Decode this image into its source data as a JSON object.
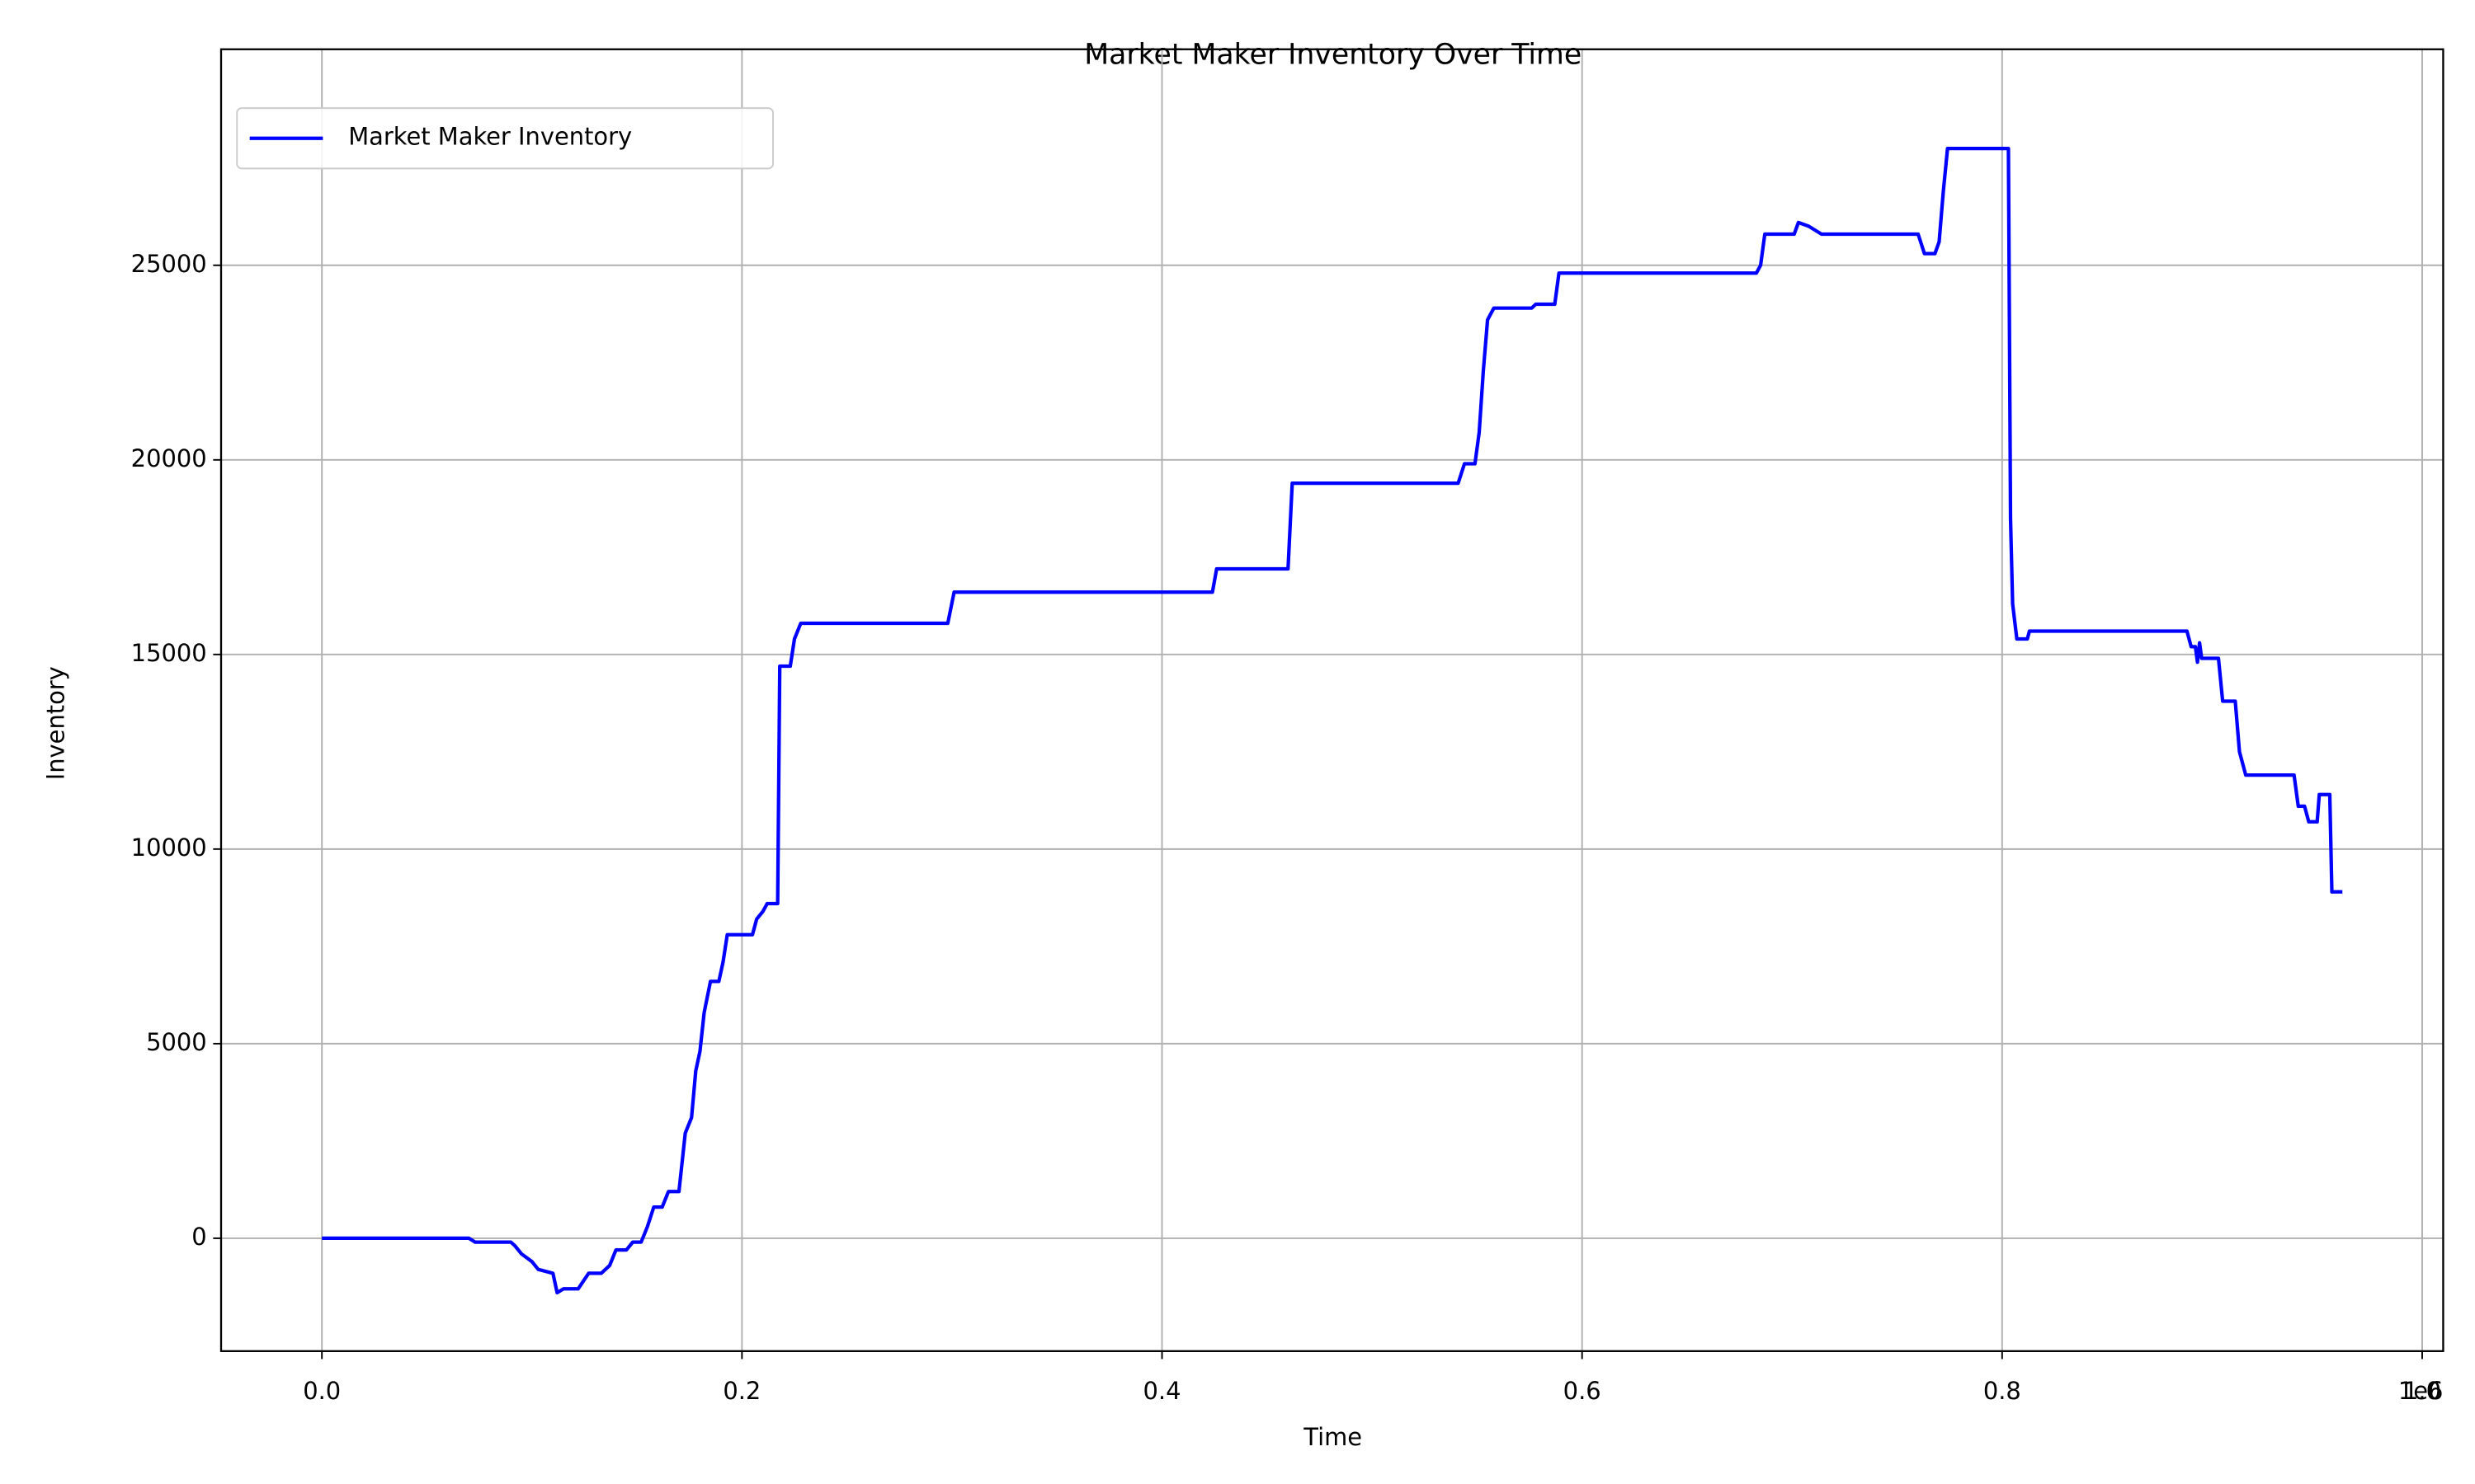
{
  "chart_data": {
    "type": "line",
    "title": "Market Maker Inventory Over Time",
    "x_label": "Time",
    "y_label": "Inventory",
    "x_offset_label": "1e6",
    "x": [
      0,
      70000,
      73000,
      90000,
      92000,
      95000,
      100000,
      103000,
      110000,
      112000,
      115000,
      122000,
      127000,
      133000,
      137000,
      140000,
      145000,
      148000,
      152000,
      155000,
      158000,
      162000,
      165000,
      170000,
      173000,
      176000,
      178000,
      180000,
      182000,
      185000,
      189000,
      191000,
      193000,
      205000,
      207000,
      210000,
      212000,
      217000,
      218000,
      223000,
      225000,
      228000,
      298000,
      301000,
      424000,
      426000,
      460000,
      462000,
      541000,
      544000,
      549000,
      551000,
      553000,
      555000,
      558000,
      576000,
      578000,
      587000,
      589000,
      683000,
      685000,
      687000,
      701000,
      703000,
      708000,
      714000,
      760000,
      763000,
      768000,
      770000,
      772000,
      774000,
      803000,
      804000,
      805000,
      807000,
      812000,
      813000,
      888000,
      890000,
      892000,
      893000,
      894000,
      895000,
      903000,
      905000,
      911000,
      913000,
      916000,
      939000,
      941000,
      944000,
      946000,
      950000,
      951000,
      956000,
      957000,
      962000
    ],
    "series": [
      {
        "name": "Market Maker Inventory",
        "color": "#0000ff",
        "values": [
          0,
          0,
          -100,
          -100,
          -200,
          -400,
          -600,
          -800,
          -900,
          -1400,
          -1300,
          -1300,
          -900,
          -900,
          -700,
          -300,
          -300,
          -100,
          -100,
          300,
          800,
          800,
          1200,
          1200,
          2700,
          3100,
          4300,
          4800,
          5800,
          6600,
          6600,
          7100,
          7800,
          7800,
          8200,
          8400,
          8600,
          8600,
          14700,
          14700,
          15400,
          15800,
          15800,
          16600,
          16600,
          17200,
          17200,
          19400,
          19400,
          19900,
          19900,
          20700,
          22300,
          23600,
          23900,
          23900,
          24000,
          24000,
          24800,
          24800,
          25000,
          25800,
          25800,
          26100,
          26000,
          25800,
          25800,
          25300,
          25300,
          25600,
          26900,
          28000,
          28000,
          18500,
          16300,
          15400,
          15400,
          15600,
          15600,
          15200,
          15200,
          14800,
          15300,
          14900,
          14900,
          13800,
          13800,
          12500,
          11900,
          11900,
          11100,
          11100,
          10700,
          10700,
          11400,
          11400,
          8900,
          8900
        ]
      }
    ],
    "xlim": [
      -48000,
      1010000
    ],
    "ylim": [
      -2900,
      30550
    ],
    "xticks": [
      {
        "value": 0,
        "label": "0.0"
      },
      {
        "value": 200000,
        "label": "0.2"
      },
      {
        "value": 400000,
        "label": "0.4"
      },
      {
        "value": 600000,
        "label": "0.6"
      },
      {
        "value": 800000,
        "label": "0.8"
      },
      {
        "value": 1000000,
        "label": "1.0"
      }
    ],
    "yticks": [
      0,
      5000,
      10000,
      15000,
      20000,
      25000
    ],
    "grid": true,
    "legend": "upper-left"
  }
}
